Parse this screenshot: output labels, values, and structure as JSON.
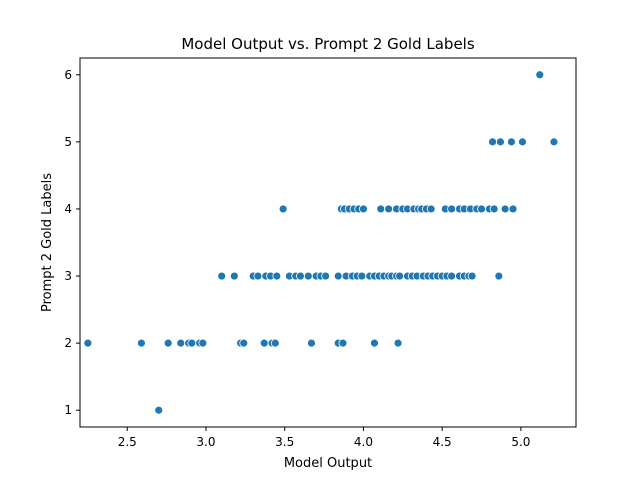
{
  "chart_data": {
    "type": "scatter",
    "title": "Model Output vs. Prompt 2 Gold Labels",
    "xlabel": "Model Output",
    "ylabel": "Prompt 2 Gold Labels",
    "xlim": [
      2.2,
      5.35
    ],
    "ylim": [
      0.75,
      6.25
    ],
    "xticks": [
      2.5,
      3.0,
      3.5,
      4.0,
      4.5,
      5.0
    ],
    "xtick_labels": [
      "2.5",
      "3.0",
      "3.5",
      "4.0",
      "4.5",
      "5.0"
    ],
    "yticks": [
      1,
      2,
      3,
      4,
      5,
      6
    ],
    "ytick_labels": [
      "1",
      "2",
      "3",
      "4",
      "5",
      "6"
    ],
    "grid": false,
    "marker_color": "#1f77b4",
    "series": [
      {
        "x": [
          2.7,
          2.25,
          2.59,
          2.76,
          2.84,
          2.89,
          2.91,
          2.96,
          2.98,
          3.22,
          3.24,
          3.37,
          3.42,
          3.44,
          3.67,
          3.84,
          3.87,
          4.07,
          4.22,
          3.1,
          3.18,
          3.3,
          3.33,
          3.38,
          3.41,
          3.45,
          3.53,
          3.57,
          3.6,
          3.65,
          3.7,
          3.73,
          3.76,
          3.84,
          3.89,
          3.93,
          3.96,
          3.99,
          4.04,
          4.07,
          4.1,
          4.13,
          4.16,
          4.18,
          4.21,
          4.23,
          4.28,
          4.31,
          4.34,
          4.38,
          4.41,
          4.44,
          4.47,
          4.5,
          4.53,
          4.56,
          4.61,
          4.64,
          4.67,
          4.69,
          4.86,
          3.49,
          3.86,
          3.88,
          3.91,
          3.94,
          3.97,
          4.0,
          4.11,
          4.16,
          4.21,
          4.25,
          4.28,
          4.32,
          4.35,
          4.37,
          4.4,
          4.43,
          4.52,
          4.56,
          4.61,
          4.64,
          4.68,
          4.72,
          4.75,
          4.8,
          4.83,
          4.9,
          4.95,
          4.82,
          4.87,
          4.94,
          5.01,
          5.21,
          5.12
        ],
        "y": [
          1,
          2,
          2,
          2,
          2,
          2,
          2,
          2,
          2,
          2,
          2,
          2,
          2,
          2,
          2,
          2,
          2,
          2,
          2,
          3,
          3,
          3,
          3,
          3,
          3,
          3,
          3,
          3,
          3,
          3,
          3,
          3,
          3,
          3,
          3,
          3,
          3,
          3,
          3,
          3,
          3,
          3,
          3,
          3,
          3,
          3,
          3,
          3,
          3,
          3,
          3,
          3,
          3,
          3,
          3,
          3,
          3,
          3,
          3,
          3,
          3,
          4,
          4,
          4,
          4,
          4,
          4,
          4,
          4,
          4,
          4,
          4,
          4,
          4,
          4,
          4,
          4,
          4,
          4,
          4,
          4,
          4,
          4,
          4,
          4,
          4,
          4,
          4,
          4,
          5,
          5,
          5,
          5,
          5,
          6
        ]
      }
    ]
  }
}
